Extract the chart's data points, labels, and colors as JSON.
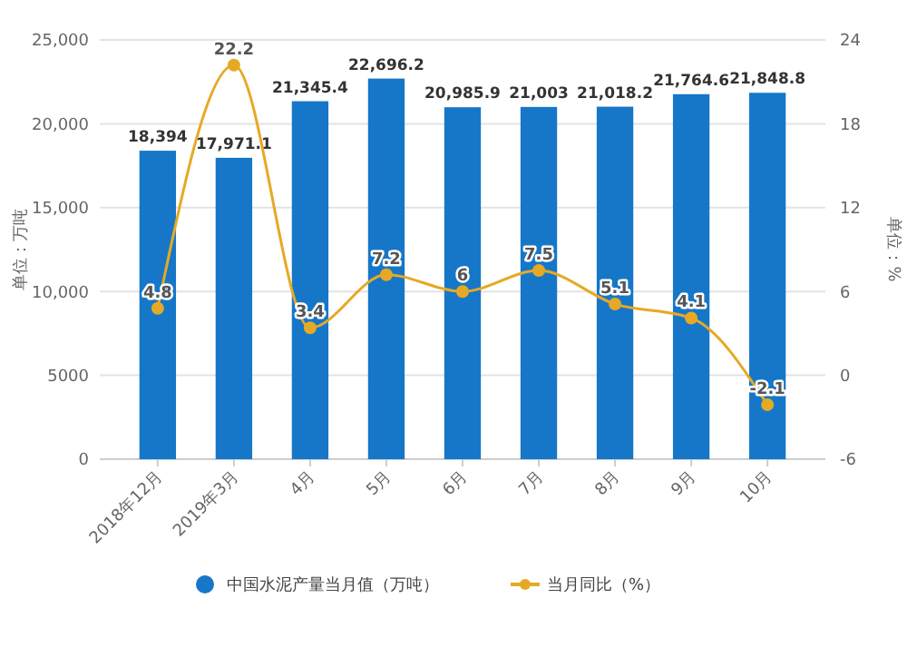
{
  "chart_data": {
    "type": "bar",
    "categories": [
      "2018年12月",
      "2019年3月",
      "4月",
      "5月",
      "6月",
      "7月",
      "8月",
      "9月",
      "10月"
    ],
    "series": [
      {
        "name": "中国水泥产量当月值（万吨）",
        "color": "#1677c8",
        "values": [
          18394,
          17971.1,
          21345.4,
          22696.2,
          20985.9,
          21003,
          21018.2,
          21764.6,
          21848.8
        ],
        "value_labels": [
          "18,394",
          "17,971.1",
          "21,345.4",
          "22,696.2",
          "20,985.9",
          "21,003",
          "21,018.2",
          "21,764.6",
          "21,848.8"
        ]
      },
      {
        "name": "当月同比（%）",
        "type": "line",
        "axis": "y2",
        "color": "#e6a925",
        "values": [
          4.8,
          22.2,
          3.4,
          7.2,
          6,
          7.5,
          5.1,
          4.1,
          -2.1
        ],
        "value_labels": [
          "4.8",
          "22.2",
          "3.4",
          "7.2",
          "6",
          "7.5",
          "5.1",
          "4.1",
          "-2.1"
        ]
      }
    ],
    "ylabel": "单位：万吨",
    "y2label": "单位：%",
    "ylim": [
      0,
      25000
    ],
    "yticks": [
      0,
      {
        "value": 5000,
        "label": "5000"
      },
      {
        "value": 10000,
        "label": "10,000"
      },
      {
        "value": 15000,
        "label": "15,000"
      },
      {
        "value": 20000,
        "label": "20,000"
      },
      {
        "value": 25000,
        "label": "25,000"
      }
    ],
    "y2lim": [
      -6,
      24
    ],
    "y2ticks": [
      -6,
      0,
      6,
      12,
      18,
      24
    ],
    "grid": "y",
    "legend": "bottom",
    "marker": "circle"
  }
}
